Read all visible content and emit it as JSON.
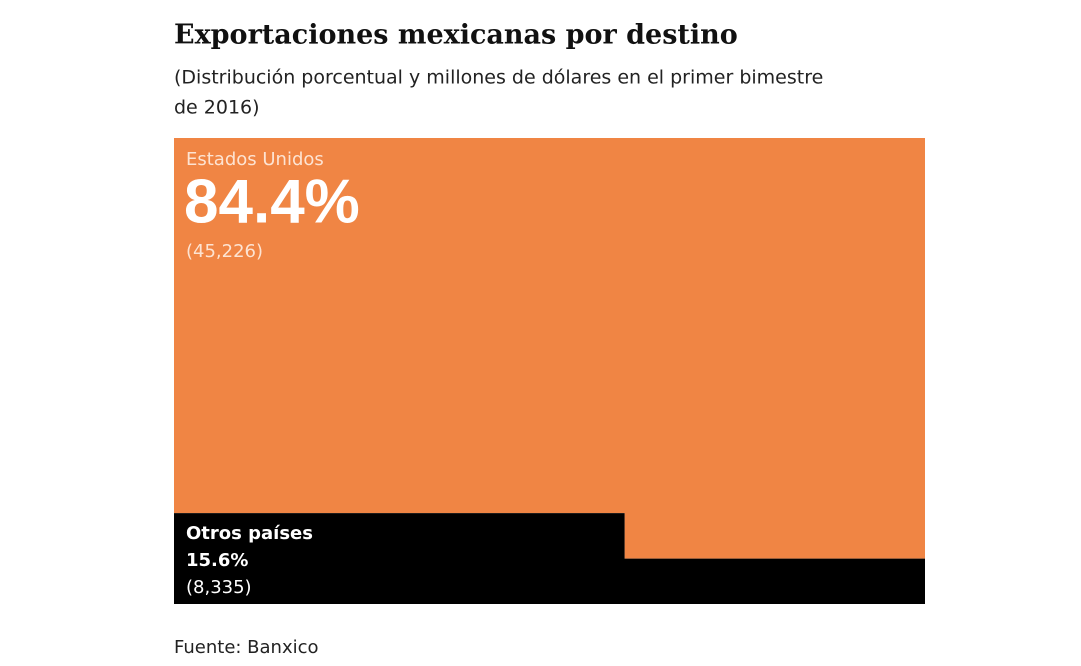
{
  "chart_data": {
    "type": "treemap",
    "title": "Exportaciones mexicanas por destino",
    "subtitle": [
      "(Distribución porcentual y millones de dólares en el primer bimestre",
      "de 2016)"
    ],
    "categories": [
      "Estados Unidos",
      "Otros países"
    ],
    "values": [
      84.4,
      15.6
    ],
    "value_labels": [
      "84.4%",
      "15.6%"
    ],
    "amount_labels": [
      "(45,226)",
      "(8,335)"
    ],
    "colors": [
      "#f08544",
      "#000000"
    ],
    "source": "Fuente: Banxico"
  }
}
